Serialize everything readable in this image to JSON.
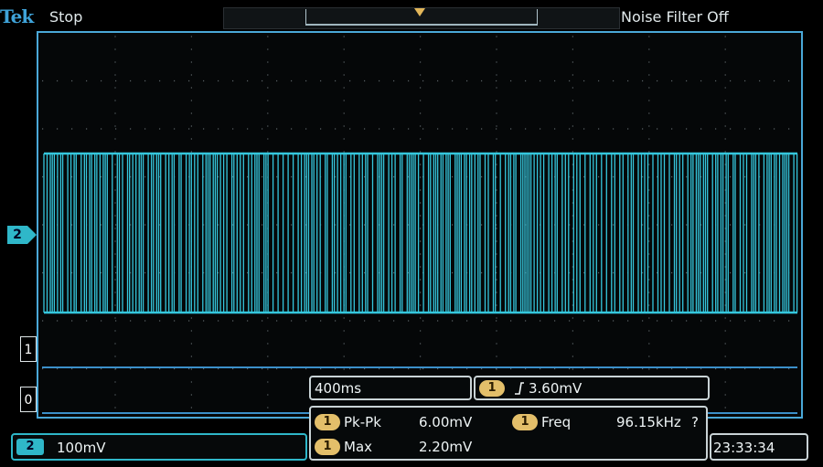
{
  "header": {
    "brand": "Tek",
    "acquisition_status": "Stop",
    "noise_filter": "Noise Filter Off"
  },
  "channels": {
    "ch2_label": "2",
    "ref1_label": "1",
    "ref0_label": "0"
  },
  "timebase": {
    "scale": "400ms"
  },
  "trigger": {
    "channel": "1",
    "slope_icon": "rising-edge-icon",
    "level": "3.60mV"
  },
  "measurements": [
    {
      "channel": "1",
      "name": "Pk-Pk",
      "value": "6.00mV"
    },
    {
      "channel": "1",
      "name": "Freq",
      "value": "96.15kHz",
      "flag": "?"
    },
    {
      "channel": "1",
      "name": "Max",
      "value": "2.20mV"
    }
  ],
  "vertical": {
    "channel": "2",
    "scale": "100mV"
  },
  "clock": "23:33:34",
  "colors": {
    "ch2_trace": "#35c6dc",
    "ch1_badge": "#e3bf6a",
    "border": "#4aa8d8"
  }
}
